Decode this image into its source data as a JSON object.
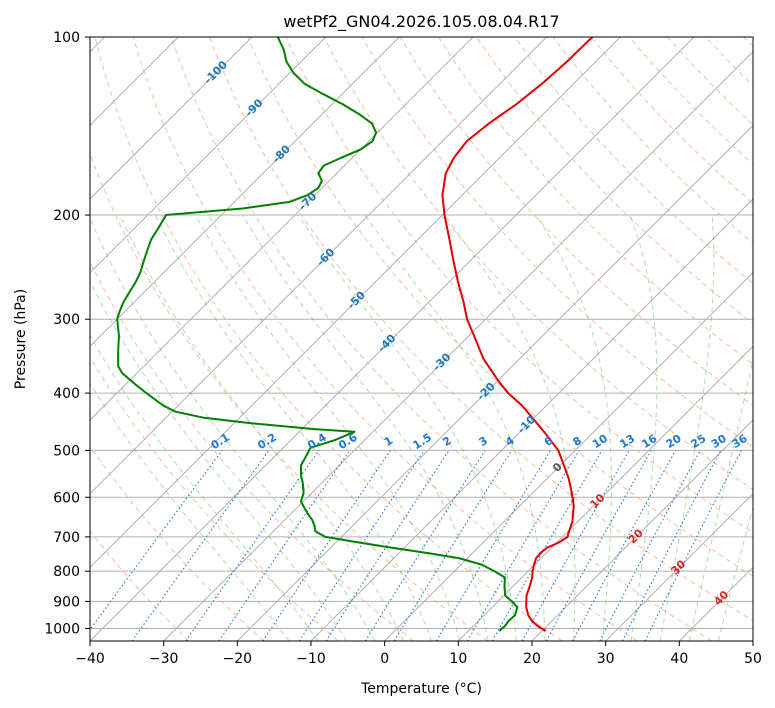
{
  "chart_data": {
    "type": "line",
    "subtype": "skew-T log-P diagram",
    "title": "wetPf2_GN04.2026.105.08.04.R17",
    "xlabel": "Temperature (°C)",
    "ylabel": "Pressure (hPa)",
    "xlim": [
      -40,
      50
    ],
    "ylim": [
      1050,
      100
    ],
    "yscale": "log",
    "x_ticks": [
      "−40",
      "−30",
      "−20",
      "−10",
      "0",
      "10",
      "20",
      "30",
      "40",
      "50"
    ],
    "y_ticks": [
      "100",
      "200",
      "300",
      "400",
      "500",
      "600",
      "700",
      "800",
      "900",
      "1000"
    ],
    "grid": true,
    "colors": {
      "temperature": "#e00000",
      "dewpoint": "#008000",
      "isotherm": "#888888",
      "dry_adiabat": "#f4a582",
      "moist_adiabat": "#4daf4a",
      "mixing_ratio": "#1f77d4",
      "isotherm_label": "#1f77b4",
      "freezing_label": "#555555",
      "warm_label": "#d62728"
    },
    "series": [
      {
        "key": "temperature",
        "pressure": [
          1010,
          990,
          970,
          950,
          920,
          880,
          850,
          820,
          800,
          780,
          760,
          745,
          730,
          715,
          700,
          690,
          660,
          620,
          590,
          560,
          530,
          500,
          470,
          440,
          420,
          400,
          380,
          350,
          320,
          300,
          280,
          260,
          240,
          220,
          200,
          185,
          170,
          160,
          150,
          140,
          130,
          120,
          110,
          100
        ],
        "temperature": [
          20.5,
          18.7,
          17.2,
          16.0,
          14.6,
          13.1,
          12.3,
          11.4,
          10.6,
          9.9,
          9.3,
          9.2,
          9.4,
          10.3,
          10.7,
          10.3,
          9.3,
          7.3,
          5.3,
          3.1,
          0.5,
          -2.3,
          -6.1,
          -10.3,
          -13.3,
          -16.9,
          -20.1,
          -24.9,
          -29.3,
          -32.5,
          -35.4,
          -38.7,
          -42.1,
          -45.7,
          -49.7,
          -52.7,
          -55.2,
          -56.2,
          -56.7,
          -56.1,
          -55.0,
          -54.3,
          -53.9,
          -53.8
        ]
      },
      {
        "key": "dewpoint",
        "pressure": [
          1010,
          990,
          970,
          950,
          920,
          900,
          880,
          850,
          820,
          800,
          780,
          760,
          745,
          730,
          715,
          700,
          685,
          670,
          655,
          640,
          625,
          610,
          590,
          570,
          550,
          530,
          510,
          495,
          480,
          465,
          460,
          450,
          440,
          430,
          420,
          400,
          390,
          380,
          370,
          360,
          340,
          320,
          300,
          290,
          280,
          270,
          260,
          250,
          240,
          230,
          220,
          210,
          200,
          195,
          190,
          185,
          180,
          175,
          170,
          165,
          160,
          155,
          150,
          145,
          140,
          135,
          130,
          125,
          120,
          115,
          110,
          105,
          100
        ],
        "temperature": [
          14.2,
          14.3,
          14.1,
          14.2,
          13.4,
          11.9,
          10.2,
          8.9,
          7.7,
          5.4,
          2.8,
          -1.3,
          -6.3,
          -11.8,
          -17.1,
          -22.2,
          -24.3,
          -25.2,
          -26.3,
          -27.7,
          -29.0,
          -30.3,
          -31.1,
          -32.4,
          -33.9,
          -35.2,
          -35.8,
          -36.3,
          -34.0,
          -32.5,
          -38.5,
          -47.5,
          -55.0,
          -59.5,
          -62.0,
          -66.0,
          -68.0,
          -70.0,
          -72.0,
          -73.5,
          -75.5,
          -77.5,
          -80.0,
          -80.8,
          -81.5,
          -82.0,
          -82.5,
          -83.2,
          -84.2,
          -85.2,
          -86.2,
          -86.8,
          -87.5,
          -78.0,
          -72.5,
          -71.0,
          -70.5,
          -71.0,
          -72.5,
          -72.8,
          -71.5,
          -70.0,
          -69.5,
          -70.2,
          -72.0,
          -75.0,
          -78.5,
          -82.5,
          -86.5,
          -89.5,
          -92.0,
          -94.0,
          -96.5
        ]
      }
    ],
    "isotherm_labels": [
      "-100",
      "-90",
      "-80",
      "-70",
      "-60",
      "-50",
      "-40",
      "-30",
      "-20",
      "-10",
      "0",
      "10",
      "20",
      "30",
      "40"
    ],
    "mixing_ratio_labels": [
      "0.1",
      "0.2",
      "0.4",
      "0.6",
      "1",
      "1.5",
      "2",
      "3",
      "4",
      "6",
      "8",
      "10",
      "13",
      "16",
      "20",
      "25",
      "30",
      "36"
    ]
  }
}
